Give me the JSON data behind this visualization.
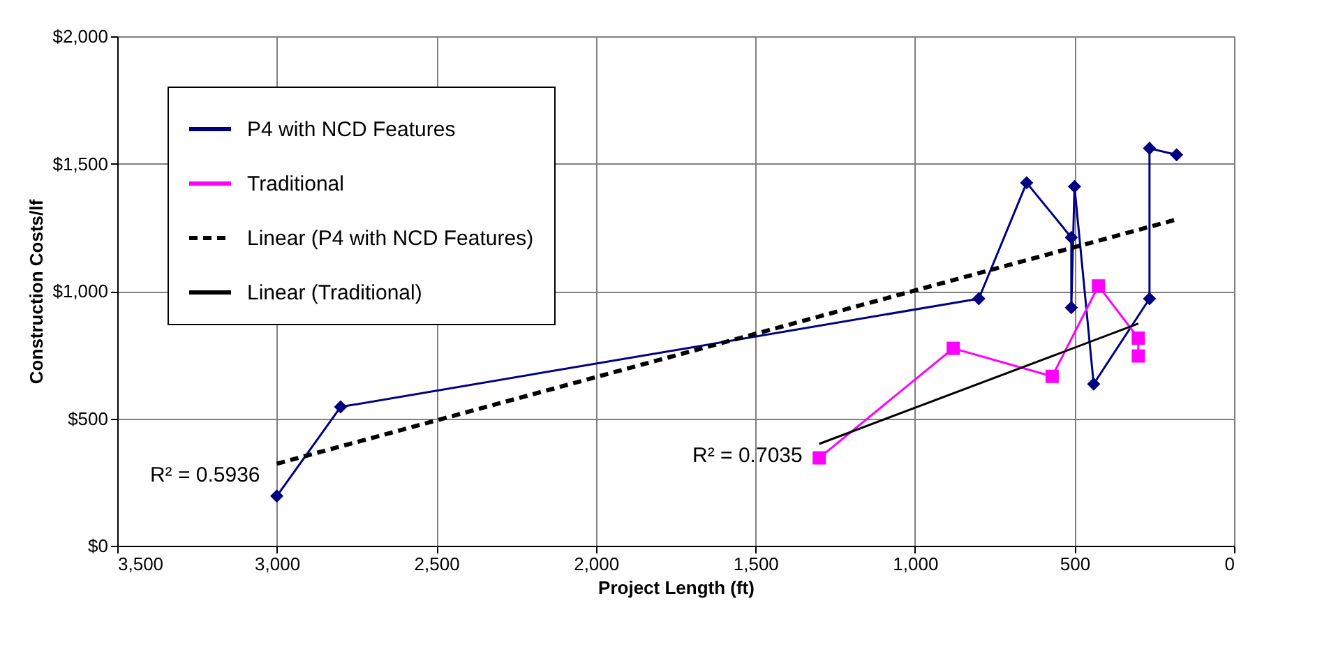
{
  "chart_data": {
    "type": "line",
    "xlabel": "Project Length (ft)",
    "ylabel": "Construction Costs/lf",
    "xlim": [
      3500,
      0
    ],
    "xticks": [
      {
        "value": 3500,
        "label": "3,500"
      },
      {
        "value": 3000,
        "label": "3,000"
      },
      {
        "value": 2500,
        "label": "2,500"
      },
      {
        "value": 2000,
        "label": "2,000"
      },
      {
        "value": 1500,
        "label": "1,500"
      },
      {
        "value": 1000,
        "label": "1,000"
      },
      500,
      0
    ],
    "ylim": [
      0,
      2000
    ],
    "yticks": [
      {
        "value": 0,
        "label": "$0"
      },
      {
        "value": 500,
        "label": "$500"
      },
      {
        "value": 1000,
        "label": "$1,000"
      },
      {
        "value": 1500,
        "label": "$1,500"
      },
      {
        "value": 2000,
        "label": "$2,000"
      }
    ],
    "grid": true,
    "legend": "top left",
    "series": [
      {
        "name": "P4 with NCD Features",
        "color": "#000080",
        "marker": "diamond",
        "line_style": "solid",
        "x": [
          3000,
          2800,
          800,
          650,
          510,
          510,
          500,
          440,
          265,
          265,
          180
        ],
        "values": [
          195,
          545,
          970,
          1425,
          1210,
          935,
          1410,
          635,
          970,
          1560,
          1535
        ]
      },
      {
        "name": "Traditional",
        "color": "#ff00ff",
        "marker": "square",
        "line_style": "solid",
        "x": [
          1300,
          880,
          570,
          425,
          300,
          300
        ],
        "values": [
          345,
          775,
          665,
          1020,
          815,
          745
        ]
      },
      {
        "name": "Linear (P4 with NCD Features)",
        "color": "#000000",
        "marker": "none",
        "line_style": "dashed",
        "x": [
          3000,
          180
        ],
        "values": [
          322,
          1281
        ]
      },
      {
        "name": "Linear (Traditional)",
        "color": "#000000",
        "marker": "none",
        "line_style": "solid",
        "x": [
          1300,
          300
        ],
        "values": [
          400,
          872
        ]
      }
    ],
    "annotations": [
      "R² = 0.5936",
      "R² = 0.7035"
    ]
  }
}
